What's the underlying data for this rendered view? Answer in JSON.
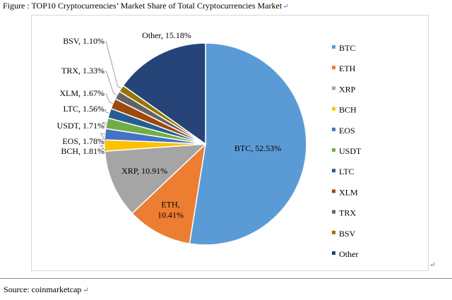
{
  "caption": "Figure : TOP10 Cryptocurrencies’ Market Share of Total Cryptocurrencies Market",
  "return_mark": "↵",
  "source": "Source: coinmarketcap",
  "chart_data": {
    "type": "pie",
    "title": "",
    "legend_position": "right",
    "slices": [
      {
        "name": "BTC",
        "value": 52.53,
        "label": "BTC, 52.53%",
        "color": "#5b9bd5"
      },
      {
        "name": "ETH",
        "value": 10.41,
        "label": "ETH, 10.41%",
        "color": "#ed7d31"
      },
      {
        "name": "XRP",
        "value": 10.91,
        "label": "XRP, 10.91%",
        "color": "#a5a5a5"
      },
      {
        "name": "BCH",
        "value": 1.81,
        "label": "BCH, 1.81%",
        "color": "#ffc000"
      },
      {
        "name": "EOS",
        "value": 1.78,
        "label": "EOS, 1.78%",
        "color": "#4472c4"
      },
      {
        "name": "USDT",
        "value": 1.71,
        "label": "USDT, 1.71%",
        "color": "#70ad47"
      },
      {
        "name": "LTC",
        "value": 1.56,
        "label": "LTC, 1.56%",
        "color": "#255e91"
      },
      {
        "name": "XLM",
        "value": 1.67,
        "label": "XLM, 1.67%",
        "color": "#9e480e"
      },
      {
        "name": "TRX",
        "value": 1.33,
        "label": "TRX, 1.33%",
        "color": "#636363"
      },
      {
        "name": "BSV",
        "value": 1.1,
        "label": "BSV, 1.10%",
        "color": "#997300"
      },
      {
        "name": "Other",
        "value": 15.18,
        "label": "Other, 15.18%",
        "color": "#264478"
      }
    ]
  }
}
